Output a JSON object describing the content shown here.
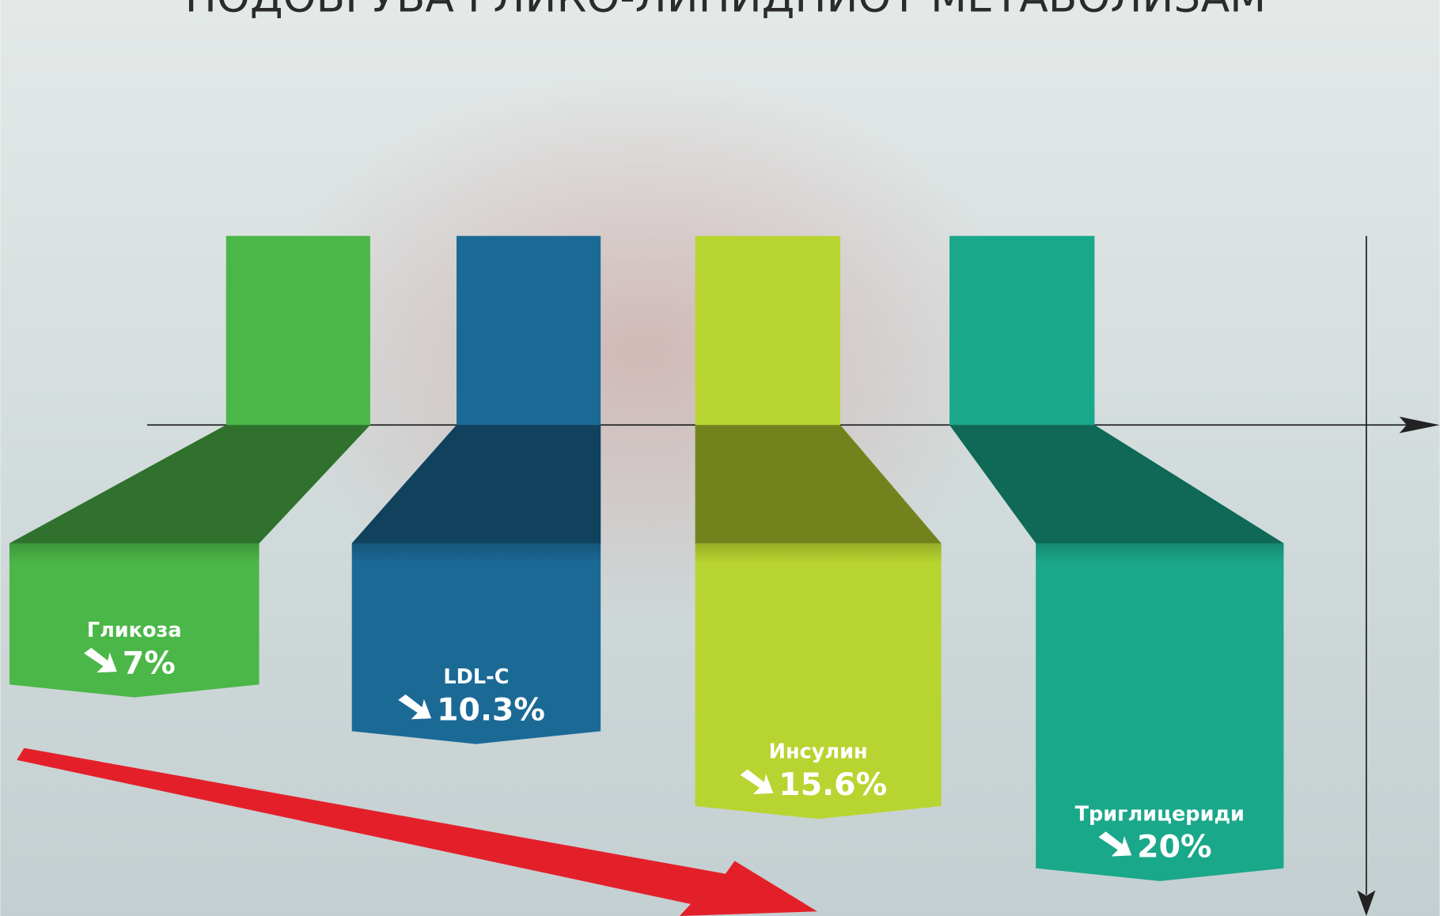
{
  "chart_data": {
    "type": "bar",
    "title": "ПОДОБРУВА ГЛИКО-ЛИПИДНИОТ МЕТАБОЛИЗАМ",
    "categories": [
      "Гликоза",
      "LDL-C",
      "Инсулин",
      "Триглицериди"
    ],
    "values": [
      7,
      10.3,
      15.6,
      20
    ],
    "value_labels": [
      "7%",
      "10.3%",
      "15.6%",
      "20%"
    ],
    "colors": [
      "#4bb748",
      "#1b6a96",
      "#b8d430",
      "#1aa88a"
    ]
  }
}
